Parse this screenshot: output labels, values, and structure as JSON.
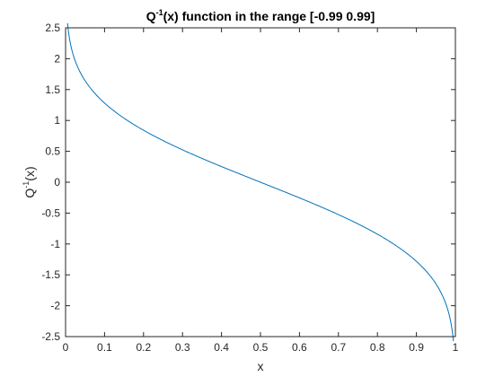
{
  "chart_data": {
    "type": "line",
    "title": {
      "prefix": "Q",
      "superscript": "-1",
      "suffix": "(x) function in the range [-0.99 0.99]"
    },
    "xlabel": "x",
    "ylabel": {
      "prefix": "Q",
      "superscript": "-1",
      "suffix": "(x)"
    },
    "xlim": [
      0,
      1
    ],
    "ylim": [
      -2.5,
      2.5
    ],
    "xticks": [
      0,
      0.1,
      0.2,
      0.3,
      0.4,
      0.5,
      0.6,
      0.7,
      0.8,
      0.9,
      1
    ],
    "xtick_labels": [
      "0",
      "0.1",
      "0.2",
      "0.3",
      "0.4",
      "0.5",
      "0.6",
      "0.7",
      "0.8",
      "0.9",
      "1"
    ],
    "yticks": [
      2.5,
      2,
      1.5,
      1,
      0.5,
      0,
      -0.5,
      -1,
      -1.5,
      -2,
      -2.5
    ],
    "ytick_labels": [
      "2.5",
      "2",
      "1.5",
      "1",
      "0.5",
      "0",
      "-0.5",
      "-1",
      "-1.5",
      "-2",
      "-2.5"
    ],
    "grid": false,
    "series": [
      {
        "color": "#0072BD",
        "x": [
          0.005,
          0.01,
          0.02,
          0.03,
          0.04,
          0.05,
          0.07,
          0.1,
          0.13,
          0.16,
          0.2,
          0.25,
          0.3,
          0.35,
          0.4,
          0.45,
          0.5,
          0.55,
          0.6,
          0.65,
          0.7,
          0.75,
          0.8,
          0.84,
          0.87,
          0.9,
          0.93,
          0.95,
          0.96,
          0.97,
          0.98,
          0.99,
          0.995
        ],
        "y": [
          2.326,
          2.054,
          1.751,
          1.555,
          1.405,
          1.282,
          1.476,
          1.282,
          1.126,
          0.994,
          0.842,
          0.674,
          0.524,
          0.385,
          0.253,
          0.126,
          0,
          -0.126,
          -0.253,
          -0.385,
          -0.524,
          -0.674,
          -0.842,
          -0.994,
          -1.126,
          -1.282,
          -1.476,
          -1.645,
          -1.751,
          -1.881,
          -2.054,
          -2.326,
          -2.326
        ]
      }
    ]
  }
}
